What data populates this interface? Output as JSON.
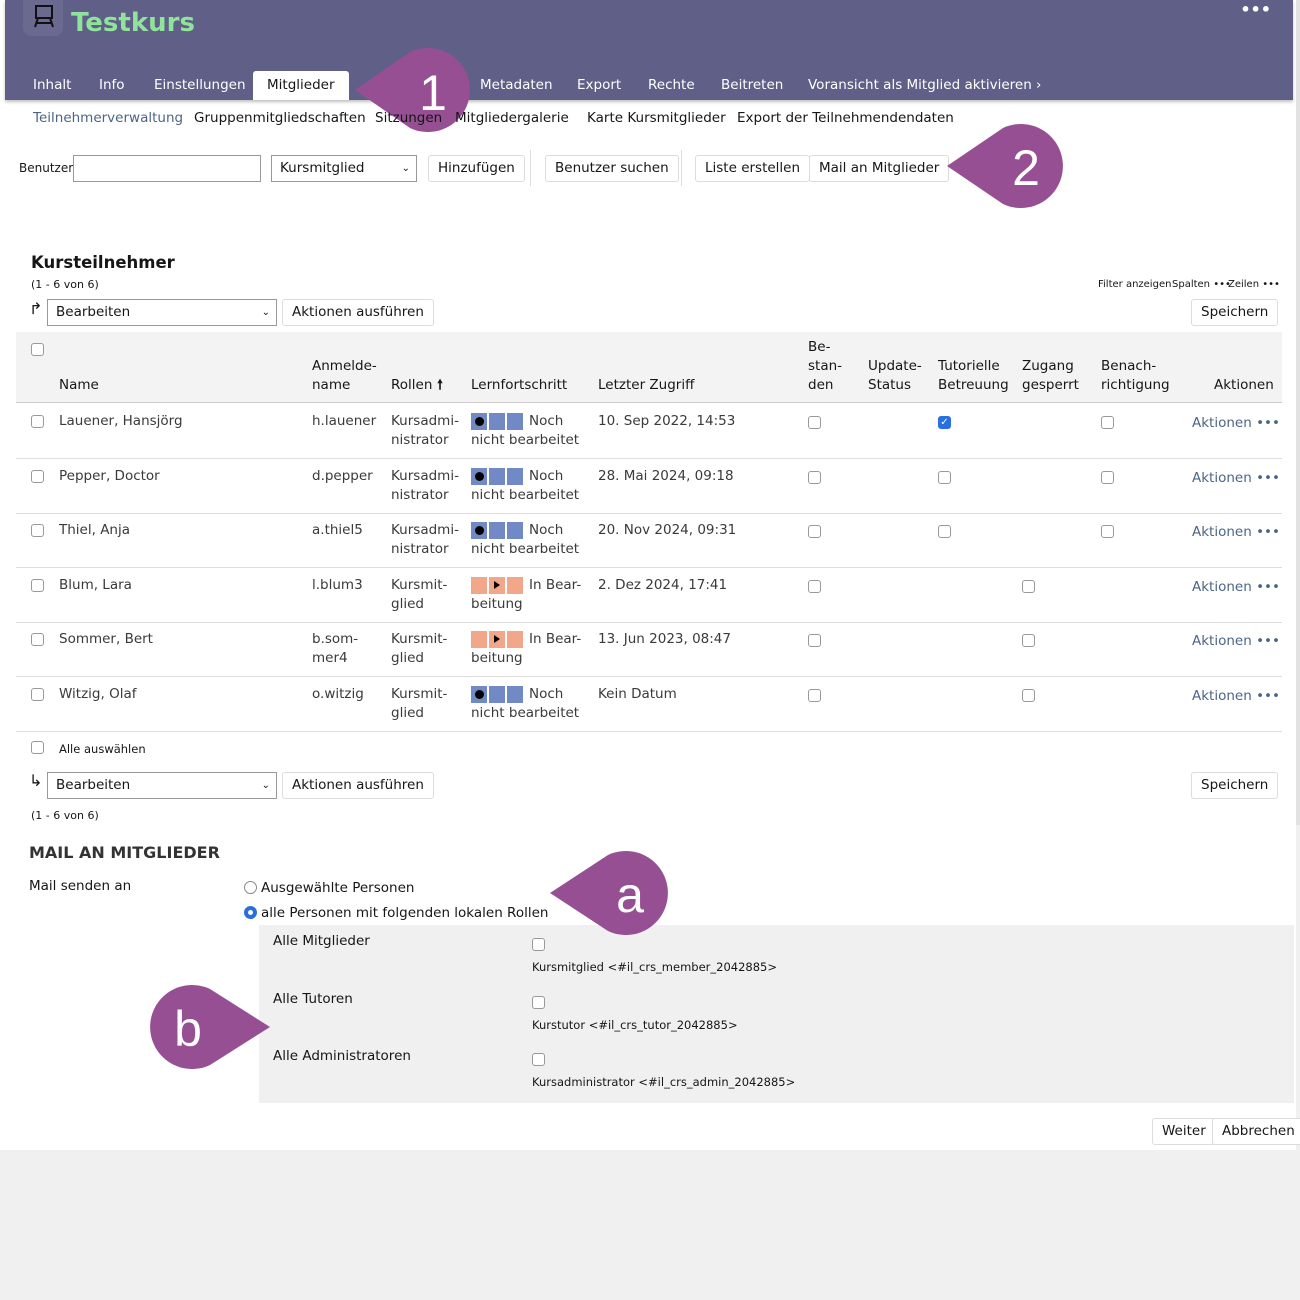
{
  "header": {
    "title": "Testkurs",
    "more": "•••",
    "logo_icon": "presentation-board-icon",
    "color": "#5f5f87",
    "title_color": "#8fe39b"
  },
  "tabs": [
    {
      "label": "Inhalt"
    },
    {
      "label": "Info"
    },
    {
      "label": "Einstellungen"
    },
    {
      "label": "Mitglieder",
      "active": true
    },
    {
      "label": "Metadaten"
    },
    {
      "label": "Export"
    },
    {
      "label": "Rechte"
    },
    {
      "label": "Beitreten"
    },
    {
      "label": "Voransicht als Mitglied aktivieren ›"
    }
  ],
  "subtabs": [
    {
      "label": "Teilnehmerverwaltung",
      "active": true
    },
    {
      "label": "Gruppenmitgliedschaften"
    },
    {
      "label": "Sitzungen"
    },
    {
      "label": "Mitgliedergalerie"
    },
    {
      "label": "Karte Kursmitglieder"
    },
    {
      "label": "Export der Teilnehmendendaten"
    }
  ],
  "toolbar": {
    "user_label": "Benutzer",
    "user_value": "",
    "role_select": "Kursmitglied",
    "add": "Hinzufügen",
    "search": "Benutzer suchen",
    "list": "Liste erstellen",
    "mail": "Mail an Mitglieder"
  },
  "table": {
    "title": "Kursteilnehmer",
    "count": "(1 - 6 von 6)",
    "filter": "Filter anzeigen",
    "columns_btn": "Spalten •••",
    "rows_btn": "Zeilen •••",
    "action_select": "Bearbeiten",
    "run": "Aktionen ausführen",
    "save": "Speichern",
    "select_all": "Alle auswählen",
    "headers": {
      "name": "Name",
      "login": "Anmelde-\nname",
      "roles": "Rollen",
      "sort_icon": "arrow-up-icon",
      "progress": "Lernfortschritt",
      "access": "Letzter Zugriff",
      "passed": "Be-\nstan-\nden",
      "update": "Update-\nStatus",
      "tutor": "Tutorielle\nBetreuung",
      "blocked": "Zugang\ngesperrt",
      "notify": "Benach-\nrichtigung",
      "actions": "Aktionen"
    },
    "rows": [
      {
        "name": "Lauener, Hansjörg",
        "login": "h.lauener",
        "role": "Kursadmi-\nnistrator",
        "status": "not",
        "progress": "Noch\nnicht bearbeitet",
        "access": "10. Sep 2022, 14:53",
        "tutor": true,
        "notify": false,
        "blocked": null,
        "action": "Aktionen •••"
      },
      {
        "name": "Pepper, Doctor",
        "login": "d.pepper",
        "role": "Kursadmi-\nnistrator",
        "status": "not",
        "progress": "Noch\nnicht bearbeitet",
        "access": "28. Mai 2024, 09:18",
        "tutor": false,
        "notify": false,
        "blocked": null,
        "action": "Aktionen •••"
      },
      {
        "name": "Thiel, Anja",
        "login": "a.thiel5",
        "role": "Kursadmi-\nnistrator",
        "status": "not",
        "progress": "Noch\nnicht bearbeitet",
        "access": "20. Nov 2024, 09:31",
        "tutor": false,
        "notify": false,
        "blocked": null,
        "action": "Aktionen •••"
      },
      {
        "name": "Blum, Lara",
        "login": "l.blum3",
        "role": "Kursmit-\nglied",
        "status": "in",
        "progress": "In Bear-\nbeitung",
        "access": "2. Dez 2024, 17:41",
        "tutor": null,
        "notify": null,
        "blocked": false,
        "action": "Aktionen •••"
      },
      {
        "name": "Sommer, Bert",
        "login": "b.som-\nmer4",
        "role": "Kursmit-\nglied",
        "status": "in",
        "progress": "In Bear-\nbeitung",
        "access": "13. Jun 2023, 08:47",
        "tutor": null,
        "notify": null,
        "blocked": false,
        "action": "Aktionen •••"
      },
      {
        "name": "Witzig, Olaf",
        "login": "o.witzig",
        "role": "Kursmit-\nglied",
        "status": "not",
        "progress": "Noch\nnicht bearbeitet",
        "access": "Kein Datum",
        "tutor": null,
        "notify": null,
        "blocked": false,
        "action": "Aktionen •••"
      }
    ]
  },
  "mail": {
    "title": "MAIL AN MITGLIEDER",
    "send_to": "Mail senden an",
    "opt1": "Ausgewählte Personen",
    "opt2": "alle Personen mit folgenden lokalen Rollen",
    "selected": "opt2",
    "roles": [
      {
        "label": "Alle Mitglieder",
        "desc": "Kursmitglied <#il_crs_member_2042885>"
      },
      {
        "label": "Alle Tutoren",
        "desc": "Kurstutor <#il_crs_tutor_2042885>"
      },
      {
        "label": "Alle Administratoren",
        "desc": "Kursadministrator <#il_crs_admin_2042885>"
      }
    ],
    "next": "Weiter",
    "cancel": "Abbrechen"
  },
  "callouts": [
    {
      "label": "1"
    },
    {
      "label": "2"
    },
    {
      "label": "a"
    },
    {
      "label": "b"
    }
  ],
  "colors": {
    "callout": "#964f92",
    "progress_not": "#7189c4",
    "progress_in": "#f2a68a",
    "link": "#4c6586"
  }
}
